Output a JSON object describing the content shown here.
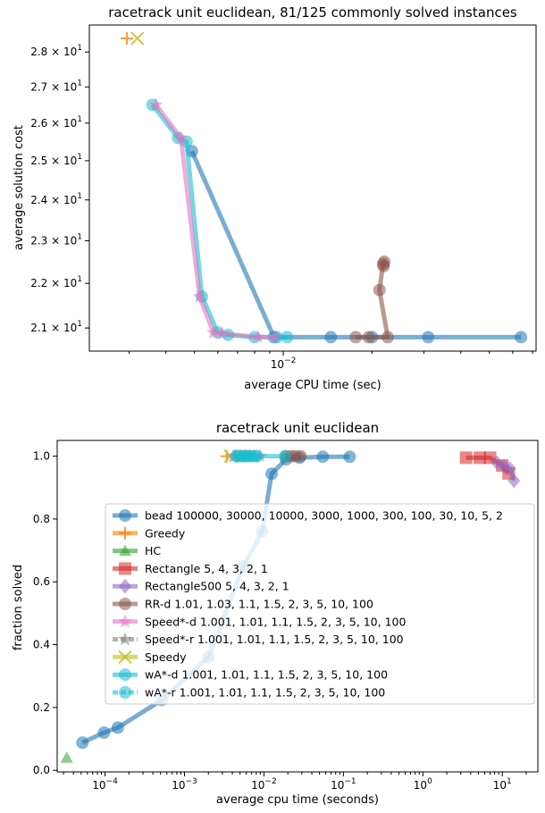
{
  "chart_data": [
    {
      "type": "line",
      "title": "racetrack unit euclidean, 81/125 commonly solved instances",
      "xlabel": "average CPU time (sec)",
      "ylabel": "average solution cost",
      "xscale": "log",
      "yscale": "log",
      "xlim": [
        0.0022,
        0.072
      ],
      "ylim": [
        20.5,
        28.8
      ],
      "x_ticks": [
        {
          "value": 0.01,
          "label": "10",
          "exp": "−2"
        }
      ],
      "y_ticks": [
        {
          "value": 21,
          "base": "2.1 × 10",
          "exp": "1"
        },
        {
          "value": 22,
          "base": "2.2 × 10",
          "exp": "1"
        },
        {
          "value": 23,
          "base": "2.3 × 10",
          "exp": "1"
        },
        {
          "value": 24,
          "base": "2.4 × 10",
          "exp": "1"
        },
        {
          "value": 25,
          "base": "2.5 × 10",
          "exp": "1"
        },
        {
          "value": 26,
          "base": "2.6 × 10",
          "exp": "1"
        },
        {
          "value": 27,
          "base": "2.7 × 10",
          "exp": "1"
        },
        {
          "value": 28,
          "base": "2.8 × 10",
          "exp": "1"
        }
      ],
      "series": [
        {
          "name": "bead",
          "color": "#1f77b4",
          "marker": "circle",
          "points": [
            [
              0.064,
              20.8
            ],
            [
              0.031,
              20.8
            ],
            [
              0.02,
              20.8
            ],
            [
              0.0145,
              20.8
            ],
            [
              0.0093,
              20.8
            ],
            [
              0.0049,
              25.25
            ]
          ]
        },
        {
          "name": "RR-d",
          "color": "#8c564b",
          "marker": "circle",
          "points": [
            [
              0.0176,
              20.8
            ],
            [
              0.0195,
              20.8
            ],
            [
              0.0226,
              20.8
            ],
            [
              0.0212,
              21.85
            ],
            [
              0.0218,
              22.45
            ],
            [
              0.022,
              22.5
            ],
            [
              0.0219,
              22.4
            ]
          ]
        },
        {
          "name": "wA*-d",
          "color": "#17becf",
          "marker": "circle",
          "points": [
            [
              0.0036,
              26.5
            ],
            [
              0.0044,
              25.6
            ],
            [
              0.0047,
              25.5
            ],
            [
              0.0053,
              21.7
            ],
            [
              0.006,
              20.9
            ],
            [
              0.0065,
              20.85
            ],
            [
              0.008,
              20.8
            ],
            [
              0.0095,
              20.8
            ],
            [
              0.0103,
              20.8
            ]
          ]
        },
        {
          "name": "Speed*-d",
          "color": "#e377c2",
          "marker": "star",
          "points": [
            [
              0.0037,
              26.5
            ],
            [
              0.0045,
              25.6
            ],
            [
              0.0052,
              21.7
            ],
            [
              0.0058,
              20.9
            ],
            [
              0.0062,
              20.88
            ],
            [
              0.0082,
              20.8
            ],
            [
              0.0094,
              20.8
            ]
          ]
        },
        {
          "name": "Greedy",
          "color": "#ff7f0e",
          "marker": "plus",
          "points": [
            [
              0.00295,
              28.4
            ]
          ]
        },
        {
          "name": "Speedy",
          "color": "#bcbd22",
          "marker": "x",
          "points": [
            [
              0.0032,
              28.4
            ]
          ]
        }
      ]
    },
    {
      "type": "line",
      "title": "racetrack unit euclidean",
      "xlabel": "average cpu time (seconds)",
      "ylabel": "fraction solved",
      "xscale": "log",
      "xlim": [
        2.5e-05,
        28
      ],
      "ylim": [
        -0.005,
        1.05
      ],
      "x_ticks": [
        {
          "value": 0.0001,
          "label": "10",
          "exp": "−4"
        },
        {
          "value": 0.001,
          "label": "10",
          "exp": "−3"
        },
        {
          "value": 0.01,
          "label": "10",
          "exp": "−2"
        },
        {
          "value": 0.1,
          "label": "10",
          "exp": "−1"
        },
        {
          "value": 1,
          "label": "10",
          "exp": "0"
        },
        {
          "value": 10,
          "label": "10",
          "exp": "1"
        }
      ],
      "y_ticks": [
        {
          "value": 0.0,
          "label": "0.0"
        },
        {
          "value": 0.2,
          "label": "0.2"
        },
        {
          "value": 0.4,
          "label": "0.4"
        },
        {
          "value": 0.6,
          "label": "0.6"
        },
        {
          "value": 0.8,
          "label": "0.8"
        },
        {
          "value": 1.0,
          "label": "1.0"
        }
      ],
      "legend_position": "center-right",
      "legend": [
        {
          "label": "bead 100000, 30000, 10000, 3000, 1000, 300, 100, 30, 10, 5, 2",
          "color": "#1f77b4",
          "marker": "circle",
          "dashed": false
        },
        {
          "label": "Greedy",
          "color": "#ff7f0e",
          "marker": "plus",
          "dashed": false
        },
        {
          "label": "HC",
          "color": "#2ca02c",
          "marker": "triangle",
          "dashed": false
        },
        {
          "label": "Rectangle 5, 4, 3, 2, 1",
          "color": "#d62728",
          "marker": "square",
          "dashed": false
        },
        {
          "label": "Rectangle500 5, 4, 3, 2, 1",
          "color": "#9467bd",
          "marker": "diamond",
          "dashed": false
        },
        {
          "label": "RR-d 1.01, 1.03, 1.1, 1.5, 2, 3, 5, 10, 100",
          "color": "#8c564b",
          "marker": "circle",
          "dashed": false
        },
        {
          "label": "Speed*-d 1.001, 1.01, 1.1, 1.5, 2, 3, 5, 10, 100",
          "color": "#e377c2",
          "marker": "star",
          "dashed": false
        },
        {
          "label": "Speed*-r 1.001, 1.01, 1.1, 1.5, 2, 3, 5, 10, 100",
          "color": "#7f7f7f",
          "marker": "star",
          "dashed": true
        },
        {
          "label": "Speedy",
          "color": "#bcbd22",
          "marker": "x",
          "dashed": false
        },
        {
          "label": "wA*-d 1.001, 1.01, 1.1, 1.5, 2, 3, 5, 10, 100",
          "color": "#17becf",
          "marker": "circle",
          "dashed": false
        },
        {
          "label": "wA*-r 1.001, 1.01, 1.1, 1.5, 2, 3, 5, 10, 100",
          "color": "#17becf",
          "marker": "circle",
          "dashed": true
        }
      ],
      "series": [
        {
          "name": "bead",
          "color": "#1f77b4",
          "marker": "circle",
          "points": [
            [
              5.2e-05,
              0.088
            ],
            [
              9.7e-05,
              0.12
            ],
            [
              0.000145,
              0.136
            ],
            [
              0.00052,
              0.224
            ],
            [
              0.002,
              0.36
            ],
            [
              0.0055,
              0.648
            ],
            [
              0.0095,
              0.76
            ],
            [
              0.0125,
              0.944
            ],
            [
              0.019,
              0.99
            ],
            [
              0.028,
              0.995
            ],
            [
              0.055,
              0.998
            ],
            [
              0.12,
              0.998
            ]
          ]
        },
        {
          "name": "Greedy",
          "color": "#ff7f0e",
          "marker": "plus",
          "points": [
            [
              0.0034,
              1.0
            ]
          ]
        },
        {
          "name": "HC",
          "color": "#2ca02c",
          "marker": "triangle",
          "points": [
            [
              3.3e-05,
              0.04
            ]
          ]
        },
        {
          "name": "Rectangle",
          "color": "#d62728",
          "marker": "square",
          "points": [
            [
              3.5,
              0.995
            ],
            [
              5.2,
              0.995
            ],
            [
              7.0,
              0.995
            ],
            [
              10.0,
              0.97
            ],
            [
              12.0,
              0.945
            ]
          ]
        },
        {
          "name": "Rectangle500",
          "color": "#9467bd",
          "marker": "diamond",
          "points": [
            [
              8.5,
              0.98
            ],
            [
              10.5,
              0.968
            ],
            [
              12.5,
              0.96
            ],
            [
              14.0,
              0.922
            ]
          ]
        },
        {
          "name": "RR-d",
          "color": "#8c564b",
          "marker": "circle",
          "points": [
            [
              0.019,
              1.0
            ],
            [
              0.022,
              1.0
            ],
            [
              0.025,
              1.0
            ],
            [
              0.029,
              1.0
            ]
          ]
        },
        {
          "name": "Speed*-d",
          "color": "#e377c2",
          "marker": "star",
          "points": [
            [
              0.0041,
              1.0
            ],
            [
              0.0048,
              1.0
            ],
            [
              0.0055,
              1.0
            ],
            [
              0.0062,
              1.0
            ],
            [
              0.0075,
              1.0
            ],
            [
              0.009,
              1.0
            ]
          ]
        },
        {
          "name": "Speed*-r",
          "color": "#7f7f7f",
          "marker": "star",
          "points": [
            [
              0.0043,
              1.0
            ],
            [
              0.0051,
              1.0
            ],
            [
              0.0058,
              1.0
            ],
            [
              0.0066,
              1.0
            ]
          ]
        },
        {
          "name": "Speedy",
          "color": "#bcbd22",
          "marker": "x",
          "points": [
            [
              0.0038,
              1.0
            ]
          ]
        },
        {
          "name": "wA*-d",
          "color": "#17becf",
          "marker": "circle",
          "points": [
            [
              0.0045,
              1.0
            ],
            [
              0.0052,
              1.0
            ],
            [
              0.006,
              1.0
            ],
            [
              0.007,
              1.0
            ],
            [
              0.0082,
              1.0
            ],
            [
              0.0185,
              1.0
            ]
          ]
        },
        {
          "name": "wA*-r",
          "color": "#17becf",
          "marker": "circle",
          "points": [
            [
              0.0047,
              1.0
            ],
            [
              0.0056,
              1.0
            ],
            [
              0.0065,
              1.0
            ],
            [
              0.0078,
              1.0
            ]
          ]
        }
      ]
    }
  ]
}
